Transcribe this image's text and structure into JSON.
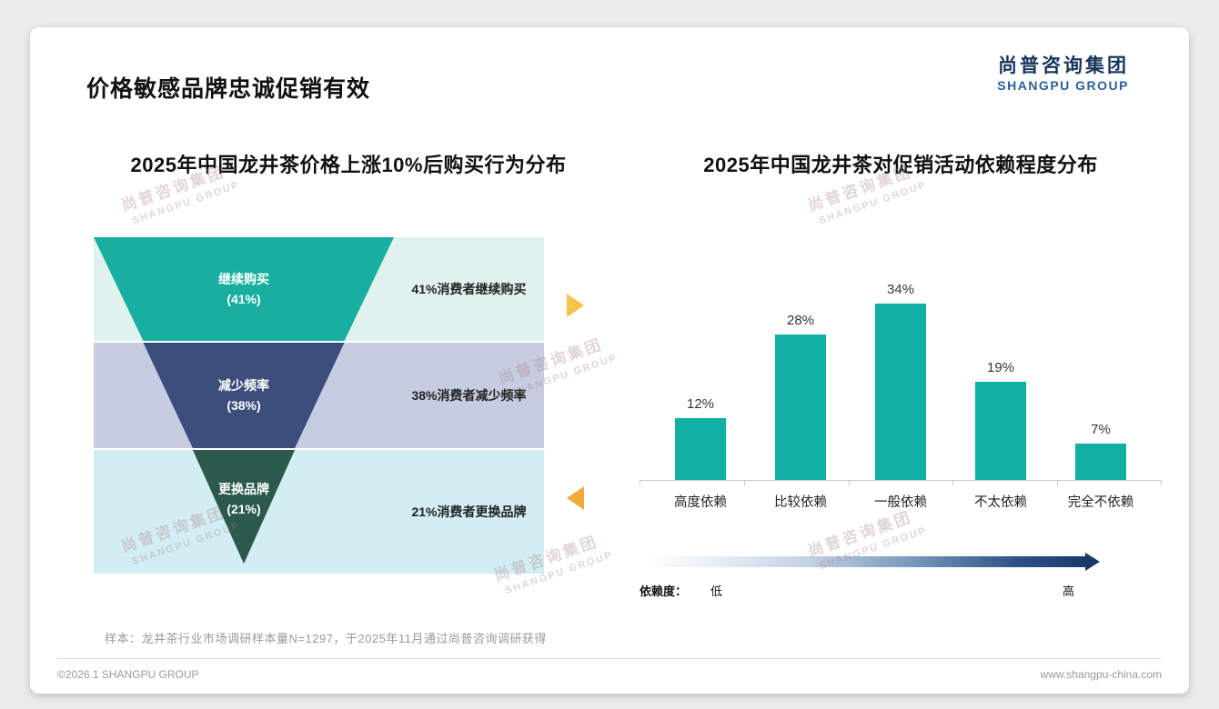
{
  "page": {
    "title": "价格敏感品牌忠诚促销有效",
    "sample_note": "样本：龙井茶行业市场调研样本量N=1297，于2025年11月通过尚普咨询调研获得",
    "copyright": "©2026.1 SHANGPU GROUP",
    "website": "www.shangpu-china.com"
  },
  "logo": {
    "cn": "尚普咨询集团",
    "en": "SHANGPU GROUP"
  },
  "watermark": {
    "cn": "尚普咨询集团",
    "en": "SHANGPU GROUP"
  },
  "colors": {
    "funnel": [
      "#18afa0",
      "#3d4e7d",
      "#2b594c"
    ],
    "funnel_light": [
      "#dff2ee",
      "#c6cde1",
      "#d3edf4"
    ],
    "bar": "#12afa5",
    "arrow_right": "#f6c24a",
    "arrow_left": "#f2a93b",
    "gradient_dark": "#16396a",
    "logo_navy": "#17365d",
    "logo_blue": "#2e6096"
  },
  "funnel": {
    "title": "2025年中国龙井茶价格上涨10%后购买行为分布",
    "items": [
      {
        "label": "继续购买",
        "pct": "(41%)",
        "desc": "41%消费者继续购买"
      },
      {
        "label": "减少频率",
        "pct": "(38%)",
        "desc": "38%消费者减少频率"
      },
      {
        "label": "更换品牌",
        "pct": "(21%)",
        "desc": "21%消费者更换品牌"
      }
    ]
  },
  "bar_chart": {
    "title": "2025年中国龙井茶对促销活动依赖程度分布",
    "value_labels": [
      "12%",
      "28%",
      "34%",
      "19%",
      "7%"
    ],
    "categories": [
      "高度依赖",
      "比较依赖",
      "一般依赖",
      "不太依赖",
      "完全不依赖"
    ],
    "axis_label": "依赖度：",
    "low": "低",
    "high": "高"
  },
  "chart_data": [
    {
      "type": "funnel",
      "title": "2025年中国龙井茶价格上涨10%后购买行为分布",
      "categories": [
        "继续购买",
        "减少频率",
        "更换品牌"
      ],
      "values": [
        41,
        38,
        21
      ],
      "unit": "%",
      "annotations": [
        "41%消费者继续购买",
        "38%消费者减少频率",
        "21%消费者更换品牌"
      ]
    },
    {
      "type": "bar",
      "title": "2025年中国龙井茶对促销活动依赖程度分布",
      "categories": [
        "高度依赖",
        "比较依赖",
        "一般依赖",
        "不太依赖",
        "完全不依赖"
      ],
      "values": [
        12,
        28,
        34,
        19,
        7
      ],
      "unit": "%",
      "ylim": [
        0,
        40
      ],
      "xlabel": "依赖度",
      "annotations": [
        "低",
        "高"
      ],
      "grid": false,
      "legend": null
    }
  ]
}
